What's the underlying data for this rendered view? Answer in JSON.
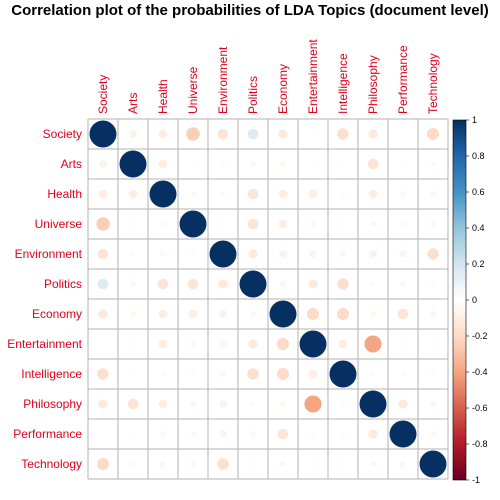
{
  "chart_data": {
    "type": "heatmap",
    "title": "Correlation plot of the probabilities of LDA Topics (document level)",
    "labels": [
      "Society",
      "Arts",
      "Health",
      "Universe",
      "Environment",
      "Politics",
      "Economy",
      "Entertainment",
      "Intelligence",
      "Philosophy",
      "Performance",
      "Technology"
    ],
    "matrix": [
      [
        1,
        -0.08,
        -0.1,
        -0.25,
        -0.15,
        0.15,
        -0.12,
        -0.02,
        -0.18,
        -0.12,
        -0.01,
        -0.2
      ],
      [
        -0.08,
        1,
        -0.1,
        -0.02,
        -0.03,
        -0.05,
        -0.05,
        -0.02,
        -0.02,
        -0.15,
        -0.02,
        -0.04
      ],
      [
        -0.1,
        -0.1,
        1,
        -0.04,
        -0.04,
        -0.15,
        -0.1,
        -0.1,
        -0.03,
        -0.1,
        -0.05,
        -0.05
      ],
      [
        -0.25,
        -0.02,
        -0.04,
        1,
        -0.03,
        -0.15,
        -0.1,
        -0.05,
        -0.03,
        -0.05,
        -0.04,
        -0.05
      ],
      [
        -0.15,
        -0.03,
        -0.04,
        -0.03,
        1,
        -0.12,
        -0.08,
        -0.07,
        -0.05,
        -0.08,
        -0.07,
        -0.18
      ],
      [
        0.15,
        -0.05,
        -0.15,
        -0.15,
        -0.12,
        1,
        -0.05,
        -0.12,
        -0.18,
        -0.03,
        -0.05,
        -0.03
      ],
      [
        -0.12,
        -0.05,
        -0.1,
        -0.1,
        -0.08,
        -0.05,
        1,
        -0.2,
        -0.2,
        -0.05,
        -0.15,
        -0.05
      ],
      [
        -0.02,
        -0.02,
        -0.1,
        -0.05,
        -0.07,
        -0.12,
        -0.2,
        1,
        -0.1,
        -0.4,
        -0.03,
        -0.03
      ],
      [
        -0.18,
        -0.02,
        -0.03,
        -0.03,
        -0.05,
        -0.18,
        -0.2,
        -0.1,
        1,
        -0.03,
        -0.03,
        -0.03
      ],
      [
        -0.12,
        -0.15,
        -0.1,
        -0.05,
        -0.08,
        -0.03,
        -0.05,
        -0.4,
        -0.03,
        1,
        -0.12,
        -0.05
      ],
      [
        -0.01,
        -0.02,
        -0.05,
        -0.04,
        -0.07,
        -0.05,
        -0.15,
        -0.03,
        -0.03,
        -0.12,
        1,
        -0.05
      ],
      [
        -0.2,
        -0.04,
        -0.05,
        -0.05,
        -0.18,
        -0.03,
        -0.05,
        -0.03,
        -0.03,
        -0.05,
        -0.05,
        1
      ]
    ],
    "colorbar": {
      "range": [
        -1,
        1
      ],
      "ticks": [
        "-1",
        "-0.8",
        "-0.6",
        "-0.4",
        "-0.2",
        "0",
        "0.2",
        "0.4",
        "0.6",
        "0.8",
        "1"
      ]
    },
    "colors": {
      "label": "#e0001b",
      "grid": "#b3b3b3",
      "scale": [
        "#67001f",
        "#b2182b",
        "#d6604d",
        "#f4a582",
        "#fddbc7",
        "#ffffff",
        "#d1e5f0",
        "#92c5de",
        "#4393c3",
        "#2166ac",
        "#053061"
      ]
    }
  }
}
